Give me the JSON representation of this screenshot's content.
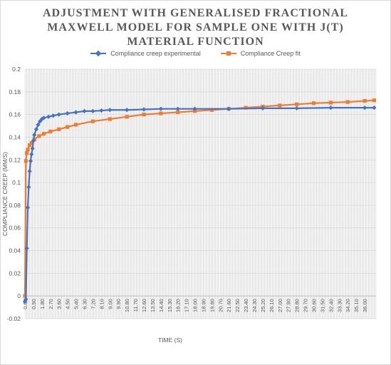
{
  "chart_data": {
    "type": "line",
    "title_lines": [
      "ADJUSTMENT WITH GENERALISED FRACTIONAL",
      "MAXWELL MODEL FOR SAMPLE ONE WITH J(T)",
      "MATERIAL FUNCTION"
    ],
    "xlabel": "TIME (S)",
    "ylabel": "COMPLIANCE CREEP (MM/S)",
    "ylim": [
      -0.02,
      0.2
    ],
    "yticks": [
      "-0.02",
      "0",
      "0.02",
      "0.04",
      "0.06",
      "0.08",
      "0.1",
      "0.12",
      "0.14",
      "0.16",
      "0.18",
      "0.2"
    ],
    "xlim": [
      0,
      37.2
    ],
    "xticks": [
      "0.00",
      "0.90",
      "1.80",
      "2.70",
      "3.60",
      "4.50",
      "5.40",
      "6.30",
      "7.20",
      "8.10",
      "9.00",
      "9.90",
      "10.80",
      "11.70",
      "12.60",
      "13.50",
      "14.40",
      "15.30",
      "16.20",
      "17.10",
      "18.00",
      "18.90",
      "19.80",
      "20.70",
      "21.60",
      "22.50",
      "23.40",
      "24.30",
      "25.20",
      "26.10",
      "27.00",
      "27.90",
      "28.80",
      "29.70",
      "30.60",
      "31.50",
      "32.40",
      "33.30",
      "34.20",
      "35.10",
      "36.00"
    ],
    "grid": true,
    "legend_position": "top",
    "series": [
      {
        "name": "Compliance creep experimental",
        "color": "#4472c4",
        "marker": "diamond",
        "x": [
          0.0,
          0.1,
          0.2,
          0.3,
          0.4,
          0.5,
          0.6,
          0.7,
          0.8,
          0.9,
          1.0,
          1.2,
          1.4,
          1.6,
          1.8,
          2.0,
          2.5,
          3.0,
          3.6,
          4.5,
          5.4,
          6.3,
          7.2,
          8.1,
          9.0,
          10.8,
          12.6,
          14.4,
          16.2,
          18.0,
          21.6,
          25.2,
          28.8,
          32.4,
          36.0,
          37.0
        ],
        "y": [
          -0.005,
          -0.003,
          0.042,
          0.078,
          0.096,
          0.11,
          0.119,
          0.125,
          0.13,
          0.137,
          0.142,
          0.147,
          0.151,
          0.154,
          0.156,
          0.157,
          0.158,
          0.159,
          0.16,
          0.161,
          0.162,
          0.163,
          0.163,
          0.1635,
          0.164,
          0.164,
          0.1645,
          0.165,
          0.165,
          0.165,
          0.165,
          0.1655,
          0.1655,
          0.166,
          0.166,
          0.166
        ]
      },
      {
        "name": "Compliance Creep fit",
        "color": "#ed7d31",
        "marker": "square",
        "x": [
          0.0,
          0.1,
          0.2,
          0.3,
          0.5,
          0.7,
          1.0,
          1.5,
          2.0,
          2.7,
          3.6,
          4.5,
          5.4,
          7.2,
          9.0,
          10.8,
          12.6,
          14.4,
          16.2,
          18.0,
          19.8,
          21.6,
          23.4,
          25.2,
          27.0,
          28.8,
          30.6,
          32.4,
          34.2,
          36.0,
          37.0
        ],
        "y": [
          0.0,
          0.119,
          0.126,
          0.129,
          0.133,
          0.135,
          0.138,
          0.141,
          0.143,
          0.145,
          0.147,
          0.149,
          0.151,
          0.154,
          0.156,
          0.158,
          0.16,
          0.161,
          0.162,
          0.163,
          0.164,
          0.165,
          0.166,
          0.167,
          0.168,
          0.169,
          0.17,
          0.1705,
          0.171,
          0.172,
          0.1725
        ]
      }
    ]
  }
}
